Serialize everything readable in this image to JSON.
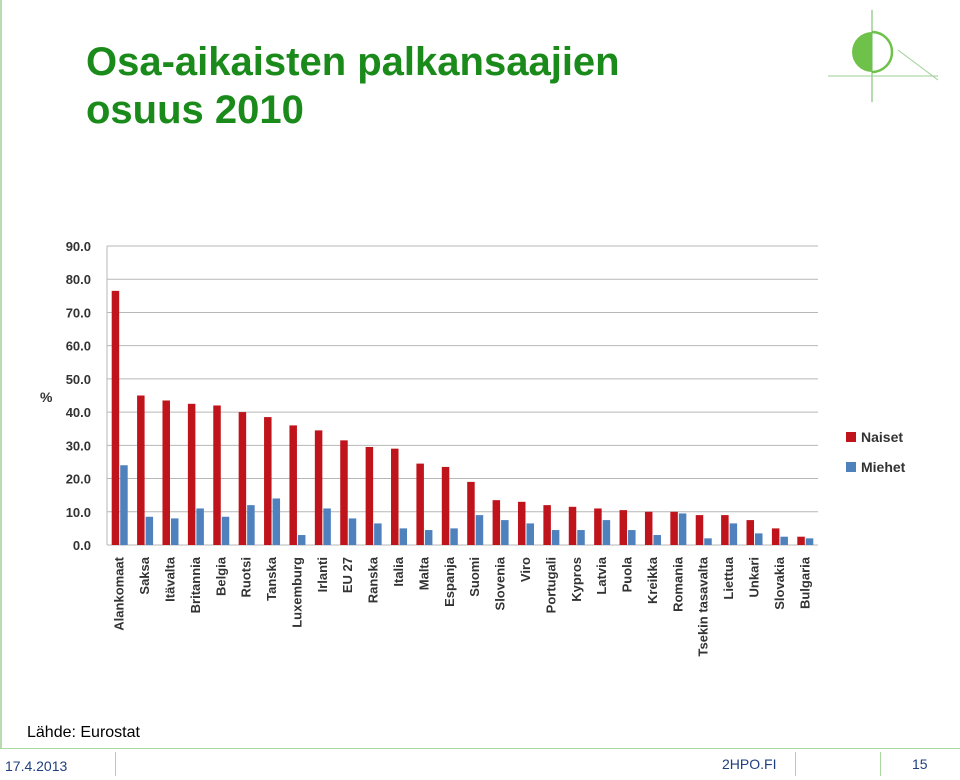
{
  "slide": {
    "title_line1": "Osa-aikaisten palkansaajien",
    "title_line2": "osuus 2010",
    "source": "Lähde: Eurostat",
    "date": "17.4.2013",
    "site": "2HPO.FI",
    "page": "15"
  },
  "colors": {
    "title": "#1a8a1a",
    "naiset": "#c0141c",
    "miehet": "#4f81bd",
    "grid": "#b7b7b7"
  },
  "chart_data": {
    "type": "bar",
    "ylabel": "%",
    "ylim": [
      0,
      90
    ],
    "yticks": [
      "0.0",
      "10.0",
      "20.0",
      "30.0",
      "40.0",
      "50.0",
      "60.0",
      "70.0",
      "80.0",
      "90.0"
    ],
    "grid": true,
    "legend_position": "right",
    "categories": [
      "Alankomaat",
      "Saksa",
      "Itävalta",
      "Britannia",
      "Belgia",
      "Ruotsi",
      "Tanska",
      "Luxemburg",
      "Irlanti",
      "EU 27",
      "Ranska",
      "Italia",
      "Malta",
      "Espanja",
      "Suomi",
      "Slovenia",
      "Viro",
      "Portugali",
      "Kypros",
      "Latvia",
      "Puola",
      "Kreikka",
      "Romania",
      "Tsekin tasavalta",
      "Liettua",
      "Unkari",
      "Slovakia",
      "Bulgaria"
    ],
    "series": [
      {
        "name": "Naiset",
        "values": [
          76.5,
          45.0,
          43.5,
          42.5,
          42.0,
          40.0,
          38.5,
          36.0,
          34.5,
          31.5,
          29.5,
          29.0,
          24.5,
          23.5,
          19.0,
          13.5,
          13.0,
          12.0,
          11.5,
          11.0,
          10.5,
          10.0,
          10.0,
          9.0,
          9.0,
          7.5,
          5.0,
          2.5
        ]
      },
      {
        "name": "Miehet",
        "values": [
          24.0,
          8.5,
          8.0,
          11.0,
          8.5,
          12.0,
          14.0,
          3.0,
          11.0,
          8.0,
          6.5,
          5.0,
          4.5,
          5.0,
          9.0,
          7.5,
          6.5,
          4.5,
          4.5,
          7.5,
          4.5,
          3.0,
          9.5,
          2.0,
          6.5,
          3.5,
          2.5,
          2.0
        ]
      }
    ]
  }
}
